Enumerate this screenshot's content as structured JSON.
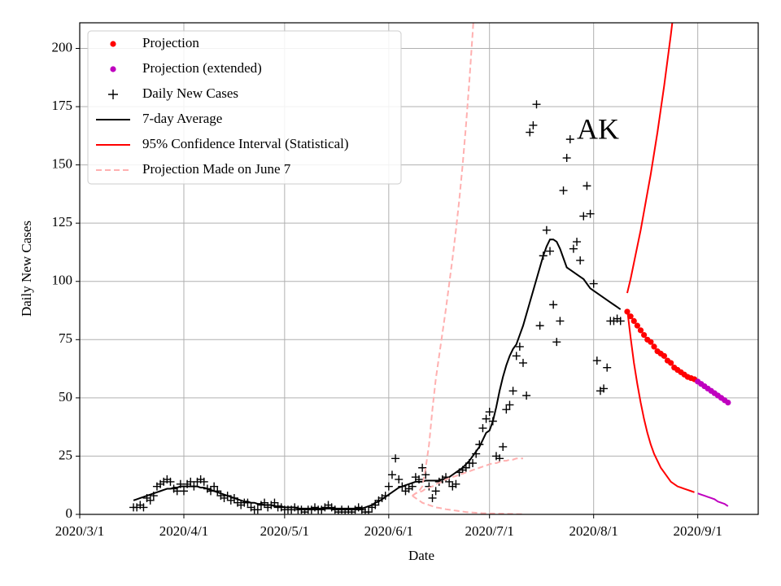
{
  "chart_data": {
    "type": "line",
    "ylabel": "Daily New Cases",
    "xlabel": "Date",
    "annotation": "AK",
    "xlim": [
      "2020/3/1",
      "2020/9/19"
    ],
    "ylim": [
      0,
      211
    ],
    "xticks": [
      "2020/3/1",
      "2020/4/1",
      "2020/5/1",
      "2020/6/1",
      "2020/7/1",
      "2020/8/1",
      "2020/9/1"
    ],
    "yticks": [
      0,
      25,
      50,
      75,
      100,
      125,
      150,
      175,
      200
    ],
    "grid": true,
    "legend": "upper left",
    "x": [
      "2020/3/17",
      "2020/3/18",
      "2020/3/19",
      "2020/3/20",
      "2020/3/21",
      "2020/3/22",
      "2020/3/23",
      "2020/3/24",
      "2020/3/25",
      "2020/3/26",
      "2020/3/27",
      "2020/3/28",
      "2020/3/29",
      "2020/3/30",
      "2020/3/31",
      "2020/4/1",
      "2020/4/2",
      "2020/4/3",
      "2020/4/4",
      "2020/4/5",
      "2020/4/6",
      "2020/4/7",
      "2020/4/8",
      "2020/4/9",
      "2020/4/10",
      "2020/4/11",
      "2020/4/12",
      "2020/4/13",
      "2020/4/14",
      "2020/4/15",
      "2020/4/16",
      "2020/4/17",
      "2020/4/18",
      "2020/4/19",
      "2020/4/20",
      "2020/4/21",
      "2020/4/22",
      "2020/4/23",
      "2020/4/24",
      "2020/4/25",
      "2020/4/26",
      "2020/4/27",
      "2020/4/28",
      "2020/4/29",
      "2020/4/30",
      "2020/5/1",
      "2020/5/2",
      "2020/5/3",
      "2020/5/4",
      "2020/5/5",
      "2020/5/6",
      "2020/5/7",
      "2020/5/8",
      "2020/5/9",
      "2020/5/10",
      "2020/5/11",
      "2020/5/12",
      "2020/5/13",
      "2020/5/14",
      "2020/5/15",
      "2020/5/16",
      "2020/5/17",
      "2020/5/18",
      "2020/5/19",
      "2020/5/20",
      "2020/5/21",
      "2020/5/22",
      "2020/5/23",
      "2020/5/24",
      "2020/5/25",
      "2020/5/26",
      "2020/5/27",
      "2020/5/28",
      "2020/5/29",
      "2020/5/30",
      "2020/5/31",
      "2020/6/1",
      "2020/6/2",
      "2020/6/3",
      "2020/6/4",
      "2020/6/5",
      "2020/6/6",
      "2020/6/7",
      "2020/6/8",
      "2020/6/9",
      "2020/6/10",
      "2020/6/11",
      "2020/6/12",
      "2020/6/13",
      "2020/6/14",
      "2020/6/15",
      "2020/6/16",
      "2020/6/17",
      "2020/6/18",
      "2020/6/19",
      "2020/6/20",
      "2020/6/21",
      "2020/6/22",
      "2020/6/23",
      "2020/6/24",
      "2020/6/25",
      "2020/6/26",
      "2020/6/27",
      "2020/6/28",
      "2020/6/29",
      "2020/6/30",
      "2020/7/1",
      "2020/7/2",
      "2020/7/3",
      "2020/7/4",
      "2020/7/5",
      "2020/7/6",
      "2020/7/7",
      "2020/7/8",
      "2020/7/9",
      "2020/7/10",
      "2020/7/11",
      "2020/7/12",
      "2020/7/13",
      "2020/7/14",
      "2020/7/15",
      "2020/7/16",
      "2020/7/17",
      "2020/7/18",
      "2020/7/19",
      "2020/7/20",
      "2020/7/21",
      "2020/7/22",
      "2020/7/23",
      "2020/7/24",
      "2020/7/25",
      "2020/7/26",
      "2020/7/27",
      "2020/7/28",
      "2020/7/29",
      "2020/7/30",
      "2020/7/31",
      "2020/8/1",
      "2020/8/2",
      "2020/8/3",
      "2020/8/4",
      "2020/8/5",
      "2020/8/6",
      "2020/8/7",
      "2020/8/8",
      "2020/8/9"
    ],
    "series": [
      {
        "name": "Projection",
        "color": "#ff0000",
        "marker": "o",
        "x": [
          "2020/8/11",
          "2020/8/12",
          "2020/8/13",
          "2020/8/14",
          "2020/8/15",
          "2020/8/16",
          "2020/8/17",
          "2020/8/18",
          "2020/8/19",
          "2020/8/20",
          "2020/8/21",
          "2020/8/22",
          "2020/8/23",
          "2020/8/24",
          "2020/8/25",
          "2020/8/26",
          "2020/8/27",
          "2020/8/28",
          "2020/8/29",
          "2020/8/30",
          "2020/8/31"
        ],
        "values": [
          87,
          85,
          83,
          81,
          79,
          77,
          75,
          74,
          72,
          70,
          69,
          68,
          66,
          65,
          63,
          62,
          61,
          60,
          59,
          58.5,
          58
        ]
      },
      {
        "name": "Projection (extended)",
        "color": "#bf00bf",
        "marker": "o",
        "x": [
          "2020/9/1",
          "2020/9/2",
          "2020/9/3",
          "2020/9/4",
          "2020/9/5",
          "2020/9/6",
          "2020/9/7",
          "2020/9/8",
          "2020/9/9",
          "2020/9/10"
        ],
        "values": [
          57,
          56,
          55,
          54,
          53,
          52,
          51,
          50,
          49,
          48
        ]
      },
      {
        "name": "Daily New Cases",
        "color": "#000000",
        "marker": "+",
        "values": [
          3,
          3,
          4,
          3,
          7,
          6,
          8,
          12,
          13,
          14,
          15,
          14,
          11,
          10,
          13,
          10,
          13,
          14,
          12,
          14,
          15,
          14,
          11,
          10,
          12,
          10,
          8,
          7,
          8,
          6,
          7,
          5,
          4,
          5,
          5,
          3,
          2,
          2,
          4,
          5,
          3,
          4,
          5,
          3,
          3,
          2,
          2,
          2,
          3,
          2,
          2,
          1,
          2,
          2,
          3,
          2,
          2,
          3,
          4,
          3,
          2,
          1,
          2,
          1,
          2,
          1,
          2,
          3,
          2,
          1,
          1,
          3,
          4,
          6,
          7,
          8,
          12,
          17,
          24,
          15,
          12,
          10,
          11,
          12,
          16,
          15,
          20,
          17,
          12,
          7,
          10,
          14,
          15,
          16,
          14,
          12,
          13,
          18,
          19,
          20,
          22,
          22,
          26,
          30,
          37,
          41,
          44,
          40,
          25,
          24,
          29,
          45,
          47,
          53,
          68,
          72,
          65,
          51,
          164,
          167,
          176,
          81,
          111,
          122,
          113,
          90,
          74,
          83,
          139,
          153,
          161,
          114,
          117,
          109,
          128,
          141,
          129,
          99,
          66,
          53,
          54,
          63,
          83,
          83,
          84,
          83
        ]
      },
      {
        "name": "7-day Average",
        "color": "#000000",
        "linestyle": "-",
        "values": [
          6,
          6.5,
          7,
          7.5,
          8,
          8.5,
          9,
          9.5,
          10,
          10.5,
          11,
          11,
          11.5,
          11.5,
          12,
          12,
          12,
          12,
          12,
          12,
          11.5,
          11.5,
          11,
          10.5,
          10,
          9.5,
          9,
          8.5,
          8,
          7.5,
          7,
          6.5,
          6,
          5.5,
          5.5,
          5,
          5,
          4.5,
          4.5,
          4,
          4,
          4,
          3.5,
          3.5,
          3.5,
          3,
          3,
          3,
          3,
          2.5,
          2.5,
          2.5,
          2.5,
          2.5,
          2.5,
          2.5,
          2.5,
          2.5,
          2.5,
          2.5,
          2.5,
          2.5,
          2.5,
          2.5,
          2.5,
          2.5,
          2.5,
          2.5,
          2.5,
          3,
          3.5,
          4,
          5,
          5.5,
          6.5,
          7.5,
          8.5,
          9.5,
          10.5,
          11.5,
          12,
          12.5,
          13,
          13.5,
          14,
          14,
          14,
          14.5,
          14.5,
          14.5,
          14.5,
          14.5,
          15,
          15.5,
          16,
          17,
          18,
          19,
          20,
          21.5,
          23,
          25,
          27,
          29,
          32,
          35,
          36,
          40,
          46,
          53,
          59,
          64,
          68,
          71,
          73,
          77,
          81,
          86,
          91,
          96,
          101,
          106,
          111,
          115,
          118,
          118,
          117,
          114,
          110,
          106,
          105,
          104,
          103,
          102,
          101,
          99,
          97,
          96,
          95,
          94,
          93,
          92,
          91,
          90,
          89,
          88
        ]
      },
      {
        "name": "95% Confidence Interval (Statistical)",
        "color": "#ff0000",
        "linestyle": "-",
        "x": [
          "2020/8/11",
          "2020/8/12",
          "2020/8/13",
          "2020/8/14",
          "2020/8/15",
          "2020/8/16",
          "2020/8/17",
          "2020/8/18",
          "2020/8/19",
          "2020/8/20",
          "2020/8/21",
          "2020/8/22",
          "2020/8/23",
          "2020/8/24",
          "2020/8/25",
          "2020/8/26",
          "2020/8/27",
          "2020/8/28",
          "2020/8/29",
          "2020/8/30",
          "2020/8/31",
          "2020/9/1",
          "2020/9/2",
          "2020/9/3",
          "2020/9/4",
          "2020/9/5",
          "2020/9/6",
          "2020/9/7",
          "2020/9/8",
          "2020/9/9",
          "2020/9/10"
        ],
        "upper": [
          95,
          101,
          108,
          115,
          122,
          130,
          138,
          146,
          155,
          164,
          174,
          184,
          195,
          206,
          218,
          null,
          null,
          null,
          null,
          null,
          null,
          null,
          null,
          null,
          null,
          null,
          null,
          null,
          null,
          null,
          null
        ],
        "lower": [
          88,
          76,
          65,
          56,
          48,
          41,
          35,
          30,
          26,
          23,
          20,
          18,
          16,
          14,
          13,
          12,
          11.5,
          11,
          10.5,
          10,
          9.5,
          9,
          8.5,
          8,
          7.5,
          7,
          6.5,
          5.5,
          5,
          4.5,
          3.5
        ]
      },
      {
        "name": "Projection Made on June 7",
        "color": "#ffb0b0",
        "linestyle": "--",
        "x": [
          "2020/6/8",
          "2020/6/9",
          "2020/6/10",
          "2020/6/11",
          "2020/6/12",
          "2020/6/13",
          "2020/6/14",
          "2020/6/15",
          "2020/6/16",
          "2020/6/17",
          "2020/6/18",
          "2020/6/19",
          "2020/6/20",
          "2020/6/21",
          "2020/6/22",
          "2020/6/23",
          "2020/6/24",
          "2020/6/25",
          "2020/6/26",
          "2020/6/27",
          "2020/6/28",
          "2020/6/29",
          "2020/6/30",
          "2020/7/1",
          "2020/7/2",
          "2020/7/3",
          "2020/7/4",
          "2020/7/5",
          "2020/7/6",
          "2020/7/7",
          "2020/7/8",
          "2020/7/9",
          "2020/7/10",
          "2020/7/11"
        ],
        "upper": [
          8,
          9,
          10,
          12,
          20,
          30,
          45,
          58,
          68,
          78,
          88,
          99,
          110,
          122,
          135,
          150,
          167,
          186,
          207,
          230,
          null,
          null,
          null,
          null,
          null,
          null,
          null,
          null,
          null,
          null,
          null,
          null,
          null,
          null
        ],
        "values": [
          8,
          9,
          9.5,
          10,
          11,
          11.5,
          12,
          13,
          13.5,
          14,
          15,
          15.5,
          16,
          16.5,
          17,
          17.5,
          18,
          18.5,
          19,
          19.5,
          20,
          20.5,
          21,
          21.5,
          22,
          22,
          22.5,
          23,
          23,
          23.5,
          23.5,
          24,
          24,
          24
        ],
        "lower": [
          8,
          7,
          6,
          5,
          4.5,
          4,
          3.5,
          3,
          2.8,
          2.5,
          2.2,
          2,
          1.8,
          1.6,
          1.4,
          1.2,
          1,
          0.9,
          0.8,
          0.7,
          0.6,
          0.5,
          0.5,
          0.4,
          0.4,
          0.3,
          0.3,
          0.3,
          0.2,
          0.2,
          0.2,
          0.1,
          0.1,
          0.1
        ]
      }
    ]
  }
}
